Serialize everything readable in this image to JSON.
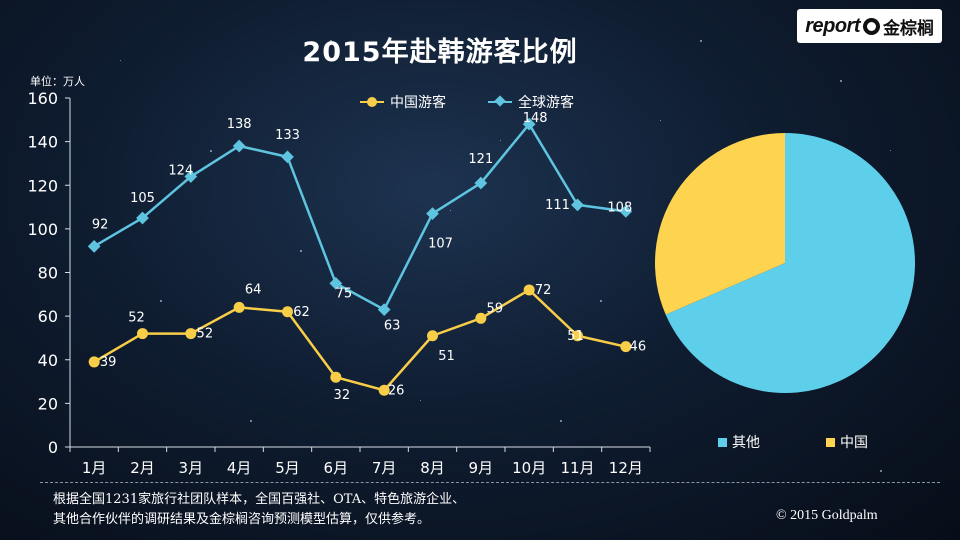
{
  "logo": {
    "text_en": "report",
    "text_cn": "金棕榈"
  },
  "chart_data": [
    {
      "type": "line",
      "title": "2015年赴韩游客比例",
      "unit_label": "单位：万人",
      "categories": [
        "1月",
        "2月",
        "3月",
        "4月",
        "5月",
        "6月",
        "7月",
        "8月",
        "9月",
        "10月",
        "11月",
        "12月"
      ],
      "ylim": [
        0,
        160
      ],
      "yticks": [
        0,
        20,
        40,
        60,
        80,
        100,
        120,
        140,
        160
      ],
      "grid": false,
      "legend_position": "top",
      "series": [
        {
          "name": "中国游客",
          "color": "#f8cd48",
          "marker": "circle",
          "values": [
            39,
            52,
            52,
            64,
            62,
            32,
            26,
            51,
            59,
            72,
            51,
            46
          ]
        },
        {
          "name": "全球游客",
          "color": "#5ec4e0",
          "marker": "diamond",
          "values": [
            92,
            105,
            124,
            138,
            133,
            75,
            63,
            107,
            121,
            148,
            111,
            108
          ]
        }
      ]
    },
    {
      "type": "pie",
      "slices": [
        {
          "label": "其他",
          "value": 68.5,
          "color": "#5ecfea"
        },
        {
          "label": "中国",
          "value": 31.5,
          "color": "#fdd34f"
        }
      ],
      "legend_position": "bottom"
    }
  ],
  "footnote": {
    "line1": "根据全国1231家旅行社团队样本，全国百强社、OTA、特色旅游企业、",
    "line2": "其他合作伙伴的调研结果及金棕榈咨询预测模型估算，仅供参考。"
  },
  "copyright": "© 2015  Goldpalm"
}
